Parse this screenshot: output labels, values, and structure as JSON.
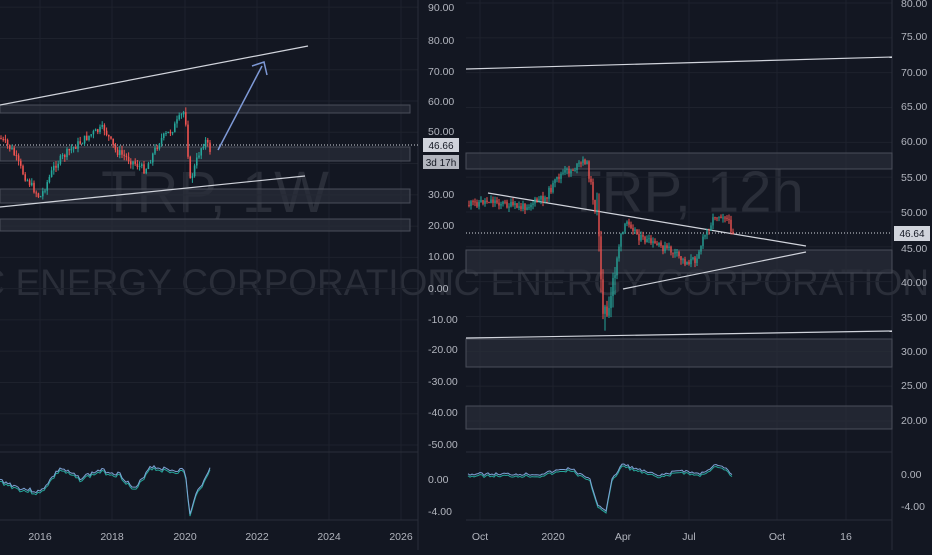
{
  "colors": {
    "background": "#131722",
    "grid": "#1e222d",
    "axis_text": "#b2b5be",
    "price_line": "#d1d4dc",
    "bull": "#26a69a",
    "bear": "#ef5350",
    "zone": "#2a2e39",
    "drawing_line": "#d1d4dc",
    "arrow": "#7e99d6",
    "watermark": "#2a2e39",
    "osc_line_a": "#7fa3d6",
    "osc_line_b": "#26a69a"
  },
  "left_chart": {
    "watermark_symbol": "TRP, 1W",
    "watermark_company": "TC ENERGY CORPORATION",
    "price_tag": "46.66",
    "countdown_tag": "3d 17h",
    "y_labels": [
      "90.00",
      "80.00",
      "70.00",
      "60.00",
      "50.00",
      "30.00",
      "20.00",
      "10.00",
      "0.00",
      "-10.00",
      "-20.00",
      "-30.00",
      "-40.00",
      "-50.00"
    ],
    "x_labels": [
      "2016",
      "2018",
      "2020",
      "2022",
      "2024",
      "2026"
    ],
    "osc_labels": [
      "0.00",
      "-4.00"
    ]
  },
  "right_chart": {
    "watermark_symbol": "TRP, 12h",
    "watermark_company": "TC ENERGY CORPORATION",
    "price_tag": "46.64",
    "y_labels": [
      "80.00",
      "75.00",
      "70.00",
      "65.00",
      "60.00",
      "55.00",
      "50.00",
      "45.00",
      "40.00",
      "35.00",
      "30.00",
      "25.00",
      "20.00"
    ],
    "x_labels": [
      "Oct",
      "2020",
      "Apr",
      "Jul",
      "Oct",
      "16"
    ],
    "osc_labels": [
      "0.00",
      "-4.00"
    ]
  },
  "chart_data": [
    {
      "type": "candlestick",
      "title": "TRP, 1W",
      "subtitle": "TC ENERGY CORPORATION",
      "x": [
        "2015",
        "2016",
        "2017",
        "2018",
        "2019",
        "2020",
        "2020-05",
        "2020-08"
      ],
      "y": [
        52,
        40,
        44,
        51,
        44,
        56,
        40,
        47
      ],
      "last_price": 46.66,
      "ylim": [
        -55,
        93
      ],
      "grid": true
    },
    {
      "type": "candlestick",
      "title": "TRP, 12h",
      "subtitle": "TC ENERGY CORPORATION",
      "x": [
        "2019-09",
        "2019-11",
        "2020-01",
        "2020-02",
        "2020-03",
        "2020-04",
        "2020-05",
        "2020-06",
        "2020-07",
        "2020-08"
      ],
      "y": [
        49.5,
        49,
        52,
        57,
        34,
        47,
        45,
        43,
        48,
        46.6
      ],
      "last_price": 46.64,
      "ylim": [
        18,
        80
      ],
      "grid": true
    }
  ]
}
